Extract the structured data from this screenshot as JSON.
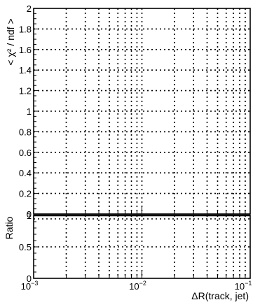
{
  "chart_data": [
    {
      "type": "line",
      "panel": "top",
      "ylabel": "< χ² / ndf >",
      "ylim": [
        0,
        2
      ],
      "yticks": [
        0,
        0.2,
        0.4,
        0.6,
        0.8,
        1,
        1.2,
        1.4,
        1.6,
        1.8,
        2
      ],
      "ytick_labels": [
        "0",
        "0.2",
        "0.4",
        "0.6",
        "0.8",
        "1",
        "1.2",
        "1.4",
        "1.6",
        "1.8",
        "2"
      ],
      "xlim": [
        0.001,
        0.1
      ],
      "xscale": "log",
      "grid": true,
      "series": []
    },
    {
      "type": "line",
      "panel": "ratio",
      "ylabel": "Ratio",
      "ylim": [
        0,
        1
      ],
      "yticks": [
        0,
        0.5,
        1
      ],
      "ytick_labels": [
        "0",
        "0.5",
        "1"
      ],
      "xlabel": "ΔR(track, jet)",
      "xlim": [
        0.001,
        0.1
      ],
      "xscale": "log",
      "xticks": [
        0.001,
        0.01,
        0.1
      ],
      "xtick_labels": [
        {
          "base": "10",
          "exp": "−3"
        },
        {
          "base": "10",
          "exp": "−2"
        },
        {
          "base": "10",
          "exp": "−1"
        }
      ],
      "reference_line": 1,
      "grid": true,
      "series": []
    }
  ]
}
